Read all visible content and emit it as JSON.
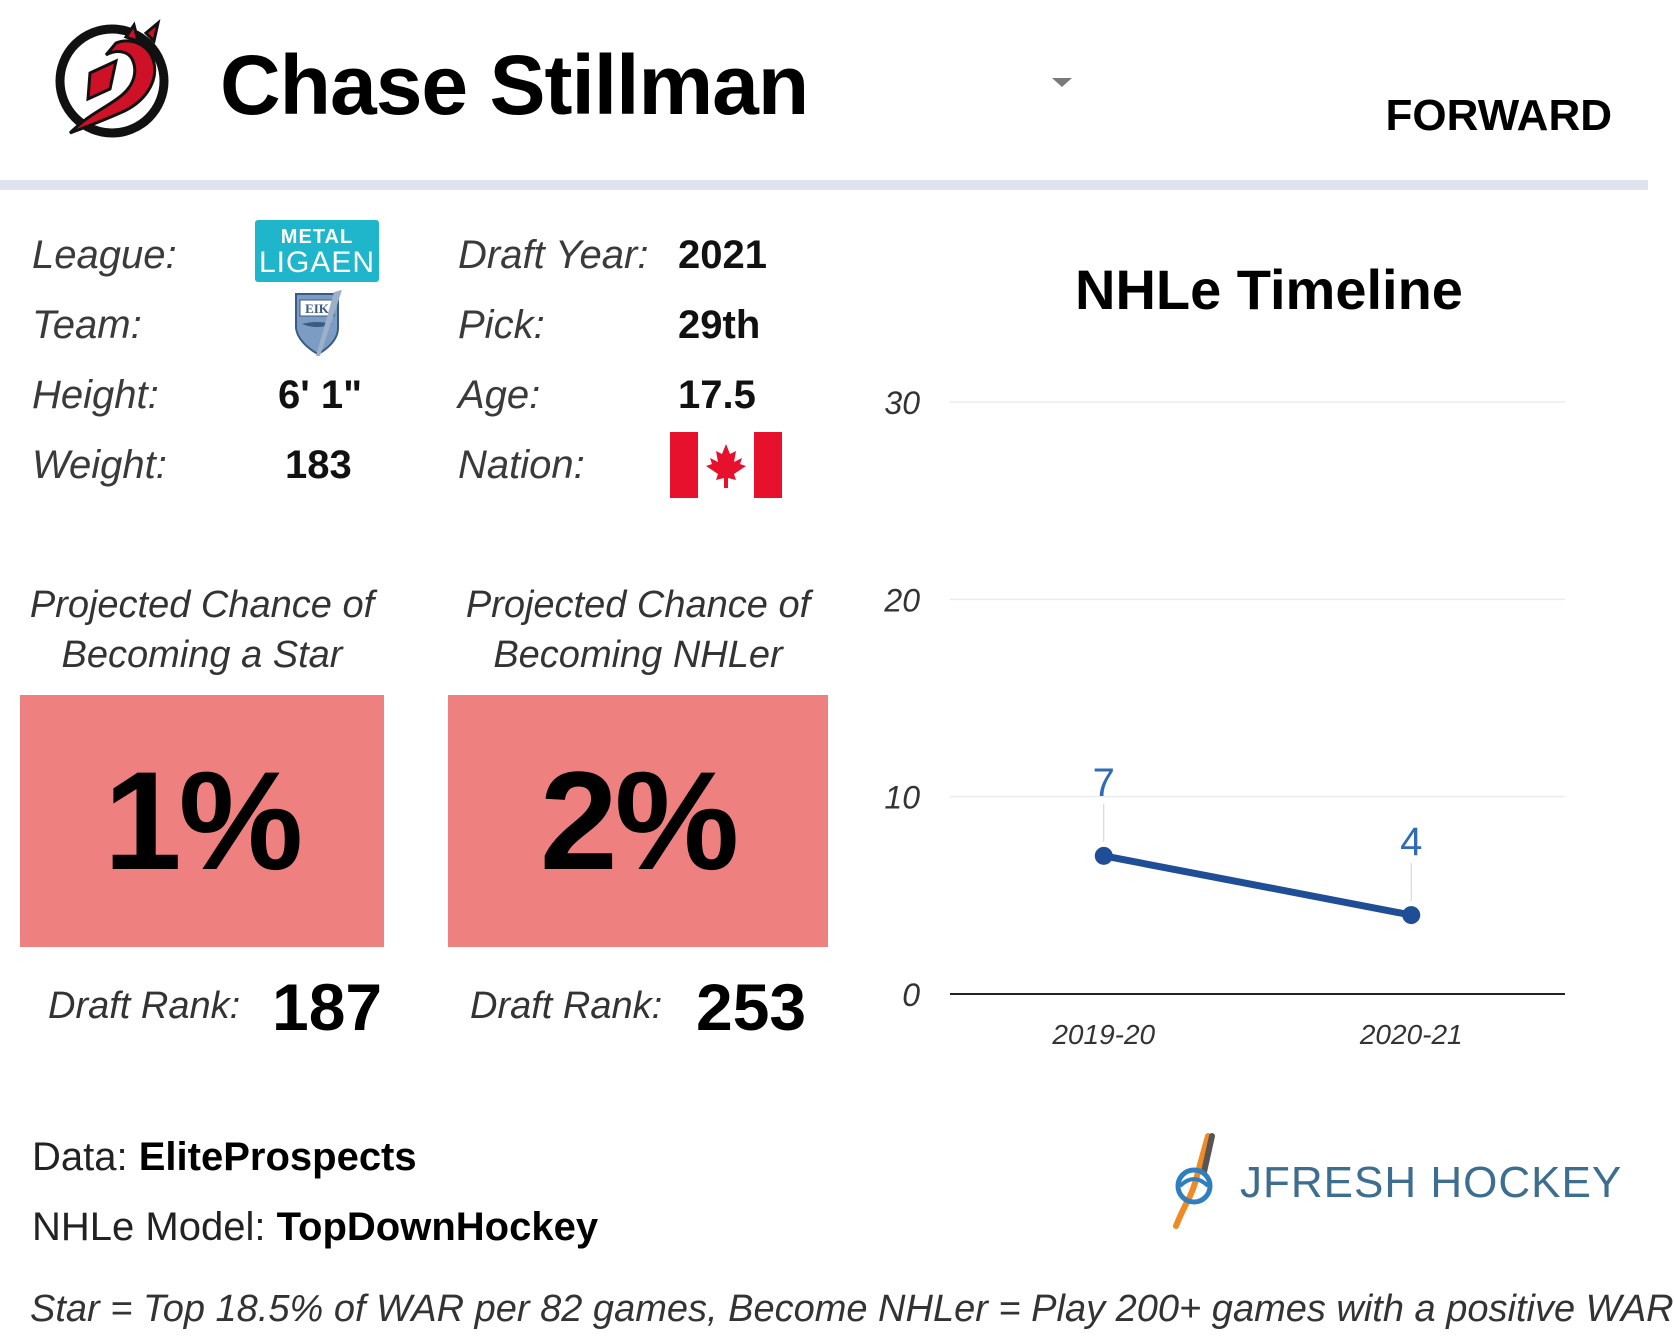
{
  "header": {
    "player_name": "Chase Stillman",
    "position": "FORWARD",
    "team_logo_icon": "devils-logo-icon"
  },
  "info": {
    "league_label": "League:",
    "league_logo": {
      "line1": "METAL",
      "line2": "LIGAEN",
      "color": "#1fb6cc"
    },
    "team_label": "Team:",
    "team_logo_text": "EIK",
    "height_label": "Height:",
    "height_value": "6' 1\"",
    "weight_label": "Weight:",
    "weight_value": "183",
    "draft_year_label": "Draft Year:",
    "draft_year_value": "2021",
    "pick_label": "Pick:",
    "pick_value": "29th",
    "age_label": "Age:",
    "age_value": "17.5",
    "nation_label": "Nation:",
    "nation_flag_icon": "canada-flag-icon"
  },
  "projections": {
    "star": {
      "title_line1": "Projected Chance of",
      "title_line2": "Becoming a Star",
      "value": "1%",
      "rank_label": "Draft Rank:",
      "rank_value": "187"
    },
    "nhler": {
      "title_line1": "Projected Chance of",
      "title_line2": "Becoming NHLer",
      "value": "2%",
      "rank_label": "Draft Rank:",
      "rank_value": "253"
    },
    "box_color": "#ef8080"
  },
  "chart_data": {
    "type": "line",
    "title": "NHLe Timeline",
    "x": [
      "2019-20",
      "2020-21"
    ],
    "series": [
      {
        "values": [
          7,
          4
        ],
        "color": "#1f4e96"
      }
    ],
    "data_labels": [
      "7",
      "4"
    ],
    "yticks": [
      "0",
      "10",
      "20",
      "30"
    ],
    "ylim": [
      0,
      30
    ],
    "grid": true,
    "xlabel": "",
    "ylabel": ""
  },
  "footer": {
    "data_label": "Data:",
    "data_source": "EliteProspects",
    "model_label": "NHLe Model:",
    "model_source": "TopDownHockey",
    "brand": "JFRESH HOCKEY",
    "note": "Star = Top 18.5% of WAR per 82 games, Become NHLer = Play 200+ games with a positive WAR"
  }
}
